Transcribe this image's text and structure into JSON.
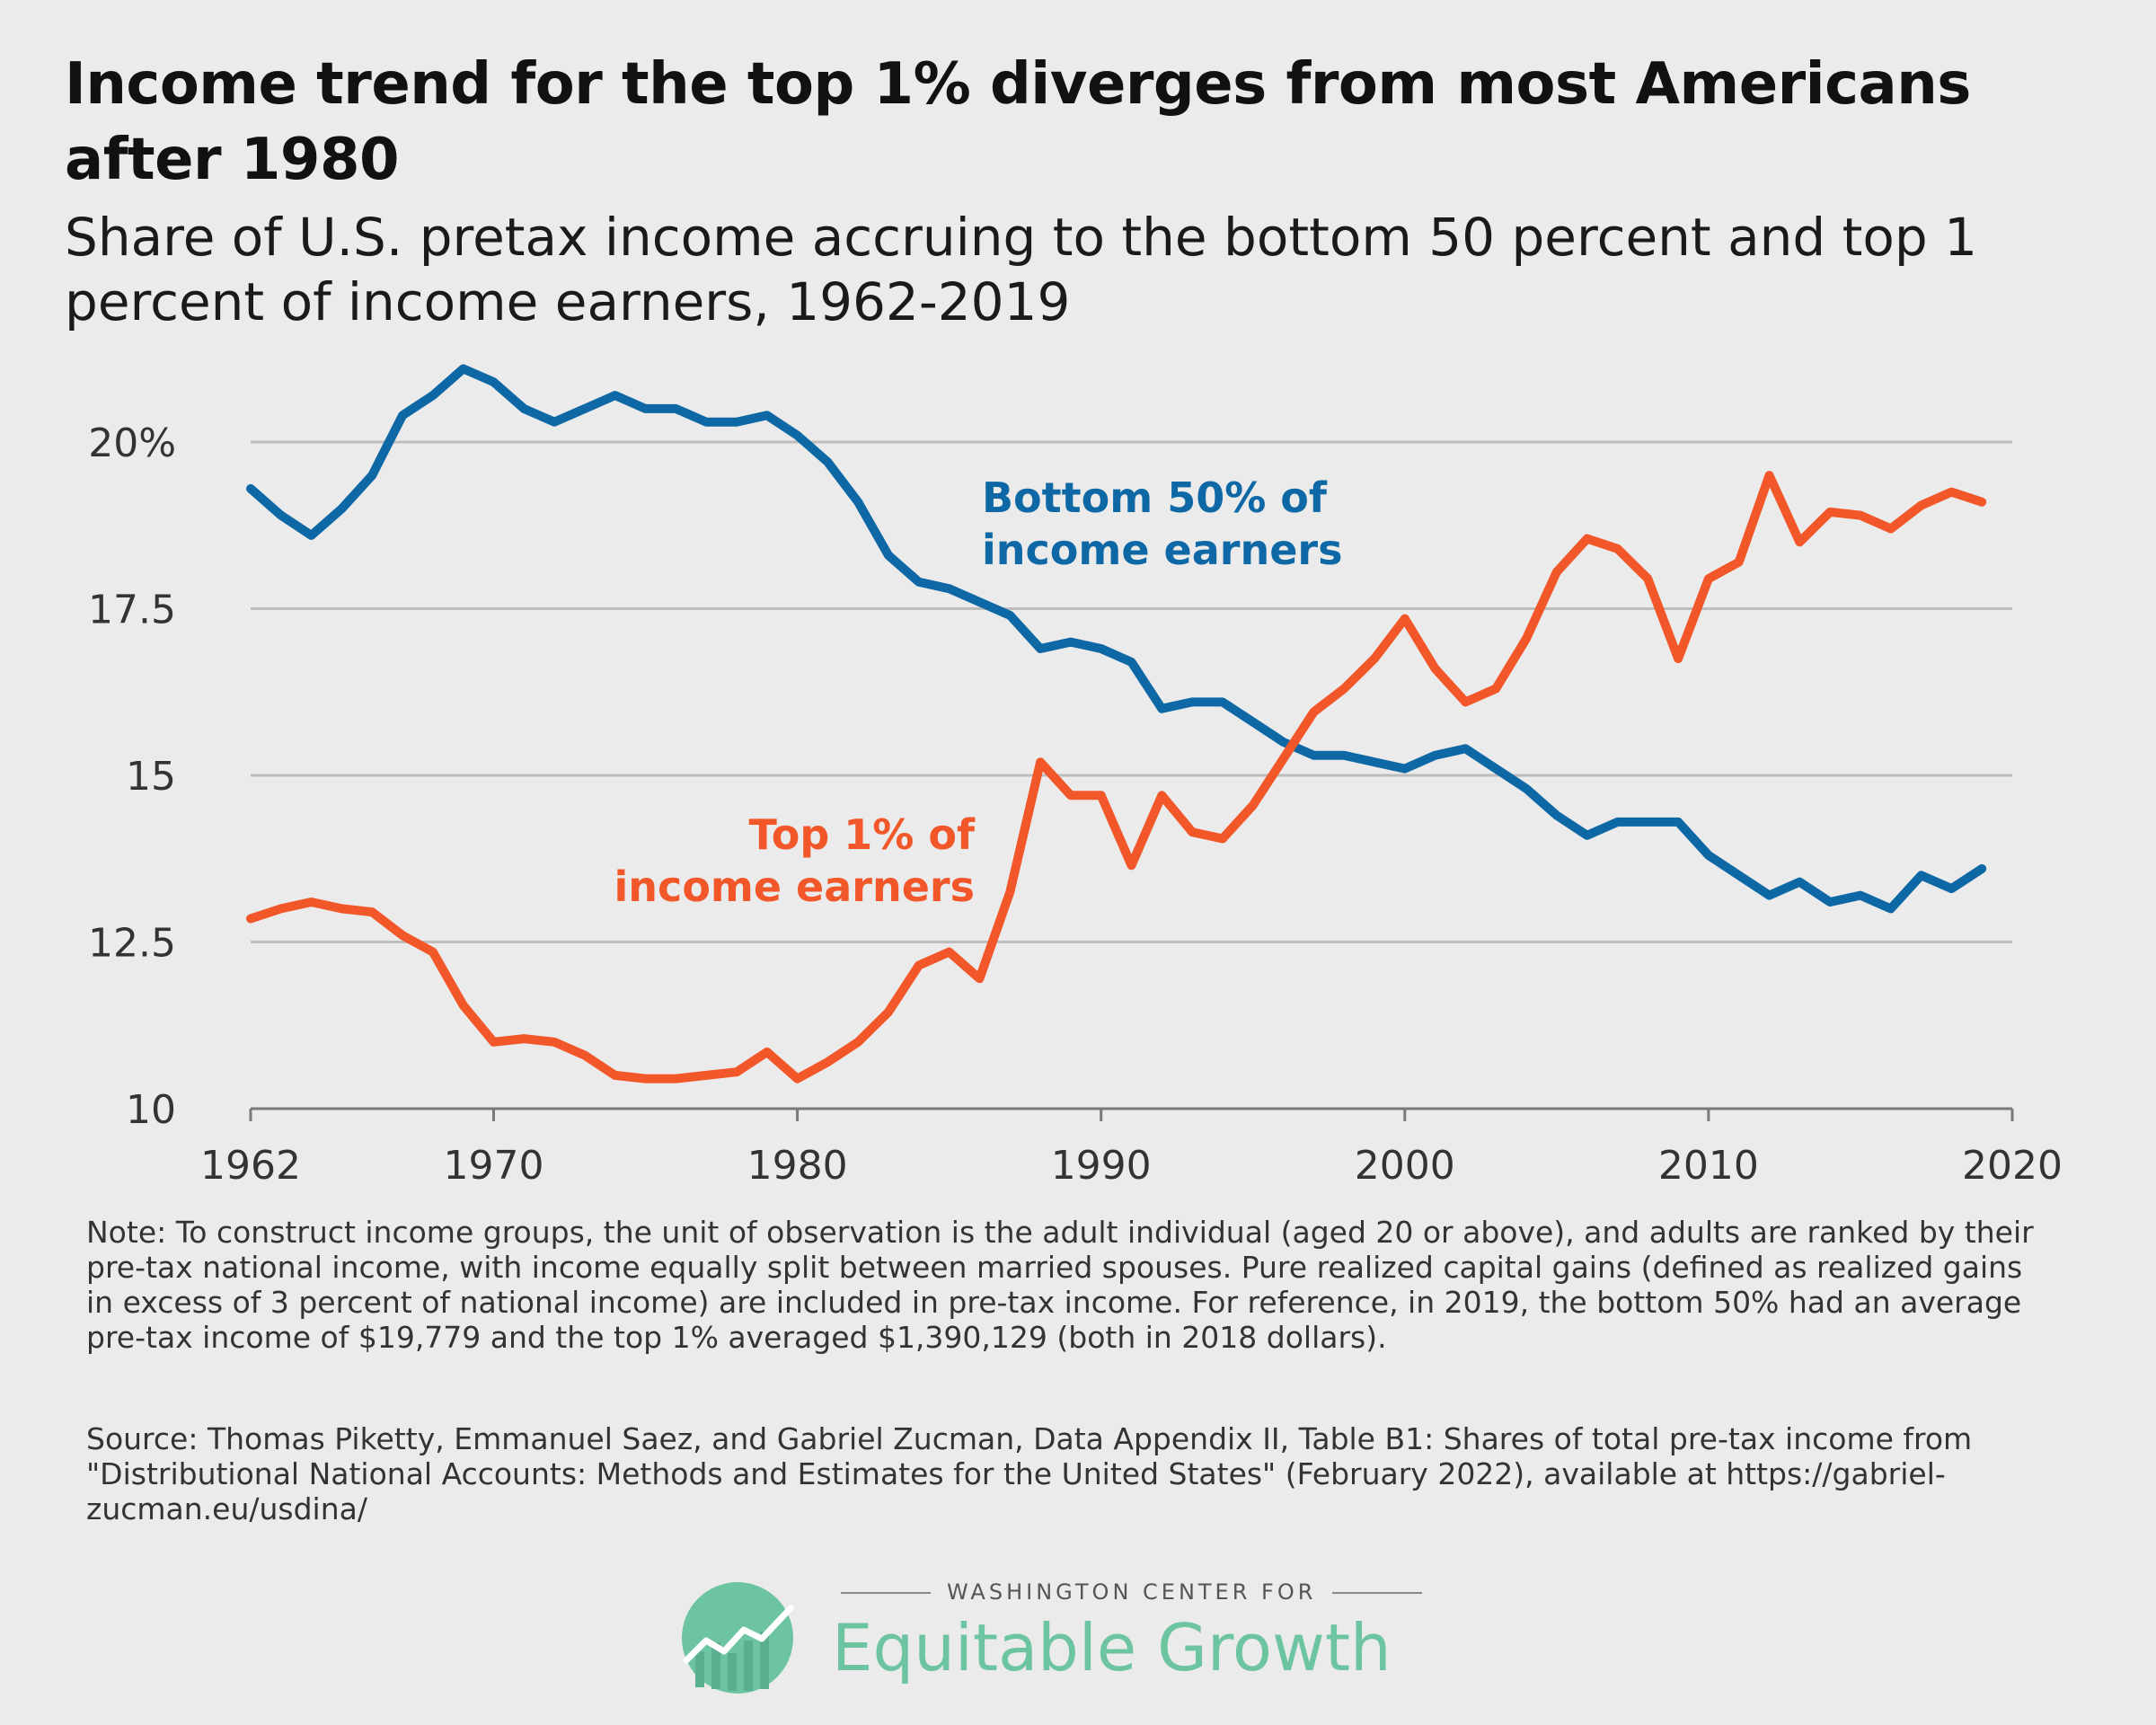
{
  "header": {
    "title": "Income trend for the top 1% diverges from most Americans after 1980",
    "subtitle": "Share of U.S. pretax income accruing to the bottom 50 percent and top 1 percent of income earners, 1962-2019"
  },
  "chart_data": {
    "type": "line",
    "xlim": [
      1962,
      2020
    ],
    "ylim": [
      10,
      21.2
    ],
    "xticks": [
      1962,
      1970,
      1980,
      1990,
      2000,
      2010,
      2020
    ],
    "yticks": [
      10,
      12.5,
      15,
      17.5,
      20
    ],
    "ytick_labels": [
      "10",
      "12.5",
      "15",
      "17.5",
      "20%"
    ],
    "grid": true,
    "series": [
      {
        "name": "Bottom 50% of income earners",
        "label_lines": [
          "Bottom 50% of",
          "income earners"
        ],
        "color": "#0e68a5",
        "x": [
          1962,
          1963,
          1964,
          1965,
          1966,
          1967,
          1968,
          1969,
          1970,
          1971,
          1972,
          1973,
          1974,
          1975,
          1976,
          1977,
          1978,
          1979,
          1980,
          1981,
          1982,
          1983,
          1984,
          1985,
          1986,
          1987,
          1988,
          1989,
          1990,
          1991,
          1992,
          1993,
          1994,
          1995,
          1996,
          1997,
          1998,
          1999,
          2000,
          2001,
          2002,
          2003,
          2004,
          2005,
          2006,
          2007,
          2008,
          2009,
          2010,
          2011,
          2012,
          2013,
          2014,
          2015,
          2016,
          2017,
          2018,
          2019
        ],
        "values": [
          19.3,
          18.9,
          18.6,
          19.0,
          19.5,
          20.4,
          20.7,
          21.1,
          20.9,
          20.5,
          20.3,
          20.5,
          20.7,
          20.5,
          20.5,
          20.3,
          20.3,
          20.4,
          20.1,
          19.7,
          19.1,
          18.3,
          17.9,
          17.8,
          17.6,
          17.4,
          16.9,
          17.0,
          16.9,
          16.7,
          16.0,
          16.1,
          16.1,
          15.8,
          15.5,
          15.3,
          15.3,
          15.2,
          15.1,
          15.3,
          15.4,
          15.1,
          14.8,
          14.4,
          14.1,
          14.3,
          14.3,
          14.3,
          13.8,
          13.5,
          13.2,
          13.4,
          13.1,
          13.2,
          13.0,
          13.5,
          13.3,
          13.6
        ]
      },
      {
        "name": "Top 1% of income earners",
        "label_lines": [
          "Top 1% of",
          "income earners"
        ],
        "color": "#f2572a",
        "x": [
          1962,
          1963,
          1964,
          1965,
          1966,
          1967,
          1968,
          1969,
          1970,
          1971,
          1972,
          1973,
          1974,
          1975,
          1976,
          1977,
          1978,
          1979,
          1980,
          1981,
          1982,
          1983,
          1984,
          1985,
          1986,
          1987,
          1988,
          1989,
          1990,
          1991,
          1992,
          1993,
          1994,
          1995,
          1996,
          1997,
          1998,
          1999,
          2000,
          2001,
          2002,
          2003,
          2004,
          2005,
          2006,
          2007,
          2008,
          2009,
          2010,
          2011,
          2012,
          2013,
          2014,
          2015,
          2016,
          2017,
          2018,
          2019
        ],
        "values": [
          12.85,
          13.0,
          13.1,
          13.0,
          12.95,
          12.6,
          12.35,
          11.55,
          11.0,
          11.05,
          11.0,
          10.8,
          10.5,
          10.45,
          10.45,
          10.5,
          10.55,
          10.85,
          10.45,
          10.7,
          11.0,
          11.45,
          12.15,
          12.35,
          11.95,
          13.25,
          15.2,
          14.7,
          14.7,
          13.65,
          14.7,
          14.15,
          14.05,
          14.55,
          15.25,
          15.95,
          16.3,
          16.75,
          17.35,
          16.6,
          16.1,
          16.3,
          17.05,
          18.05,
          18.55,
          18.4,
          17.95,
          16.75,
          17.95,
          18.2,
          19.5,
          18.5,
          18.95,
          18.9,
          18.7,
          19.05,
          19.25,
          19.1
        ]
      }
    ]
  },
  "footer": {
    "note": "Note: To construct income groups, the unit of observation is the adult individual (aged 20 or above), and adults are ranked by their pre-tax national income, with income equally split between married spouses. Pure realized capital gains (defined as realized gains in excess of 3 percent of national income) are included in pre-tax income. For reference, in 2019, the bottom 50% had an average pre-tax income of $19,779 and the top 1% averaged $1,390,129 (both in 2018 dollars).",
    "source": "Source: Thomas Piketty, Emmanuel Saez, and Gabriel Zucman, Data Appendix II, Table B1: Shares of total pre-tax income from \"Distributional National Accounts: Methods and Estimates for the United States\" (February 2022), available at https://gabriel-zucman.eu/usdina/"
  },
  "logo": {
    "kicker": "WASHINGTON CENTER FOR",
    "name": "Equitable Growth",
    "color": "#6cc4a1"
  }
}
